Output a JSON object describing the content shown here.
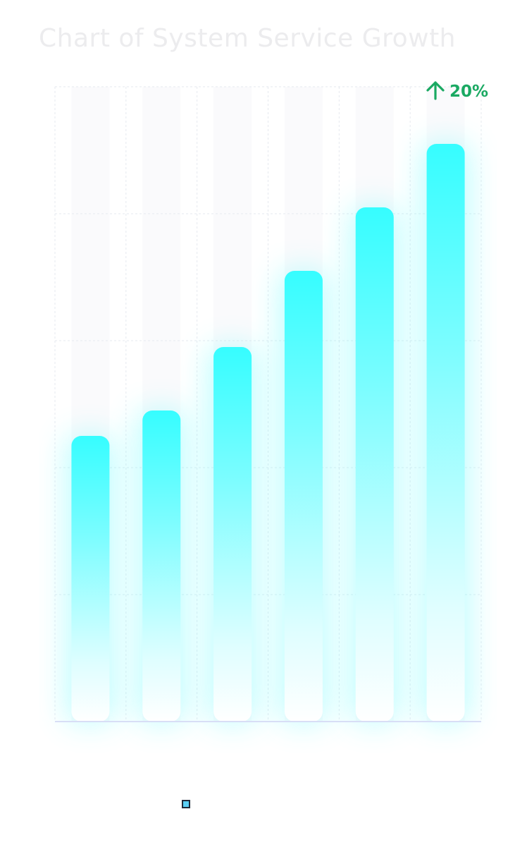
{
  "chart_data": {
    "type": "bar",
    "title": "Chart of System Service Growth",
    "categories": [
      "",
      "",
      "",
      "",
      "",
      ""
    ],
    "series": [
      {
        "name": "",
        "values": [
          450,
          490,
          590,
          710,
          810,
          910
        ]
      }
    ],
    "ylim": [
      0,
      1000
    ],
    "grid": true,
    "legend_position": "bottom",
    "annotation": {
      "text": "20%",
      "icon": "arrow-up-icon",
      "color": "#1aa962"
    },
    "colors": {
      "bar_top": "#36fdff",
      "bar_bottom": "#ffffff",
      "grid": "#e6e9ef",
      "axis": "#d8def6",
      "legend_swatch": "#5ad0f5"
    }
  }
}
